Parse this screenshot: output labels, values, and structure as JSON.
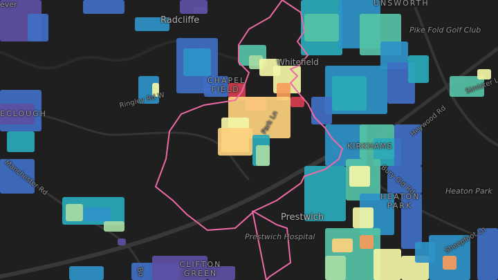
{
  "map": {
    "colors": {
      "background": "#1f1f1f",
      "roads": "#3a3a3a",
      "boundary": "#ee6aa7",
      "palette": [
        "#5e4fa2",
        "#3f6fc4",
        "#2f93c8",
        "#2aa9b8",
        "#55c2a5",
        "#a7dca4",
        "#f3f6a6",
        "#fdd17e",
        "#f99b5a",
        "#d53e4f"
      ]
    },
    "labels": {
      "radcliffe": "Radcliffe",
      "unsworth": "UNSWORTH",
      "pike_fold": "Pike Fold Golf Club",
      "whitefield": "Whitefield",
      "chapel_field": "CHAPEL FIELD",
      "ringley_rd": "Ringley Rd W",
      "ecclough": "ECLOUGH",
      "park_ln": "Park Ln",
      "heywood_rd": "Heywood Rd",
      "simister_ln": "Simister Ln",
      "kirkhams": "KIRKHAMS",
      "bury_old_rd": "Bury Old Rd",
      "heaton_park_area": "HEATON PARK",
      "heaton_park": "Heaton Park",
      "prestwich": "Prestwich",
      "prestwich_hospital": "Prestwich Hospital",
      "clifton_green": "CLIFTON GREEN",
      "manchester_rd": "Manchester Rd",
      "sheepfoot_ln": "Sheepfoot Ln",
      "bolton_rd_partial": "Bo",
      "top_left_partial": "ever"
    }
  }
}
